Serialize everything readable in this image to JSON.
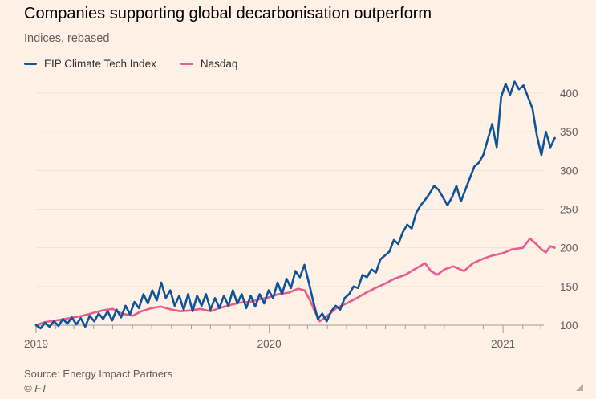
{
  "title": "Companies supporting global decarbonisation outperform",
  "subtitle": "Indices, rebased",
  "source": "Source: Energy Impact Partners",
  "credit": "© FT",
  "chart_data": {
    "type": "line",
    "xlim": [
      "2019-01-01",
      "2021-03-31"
    ],
    "ylim": [
      100,
      420
    ],
    "x_ticks": [
      {
        "date": "2019-01-01",
        "label": "2019"
      },
      {
        "date": "2020-01-01",
        "label": "2020"
      },
      {
        "date": "2021-01-01",
        "label": "2021"
      }
    ],
    "y_ticks": [
      100,
      150,
      200,
      250,
      300,
      350,
      400
    ],
    "y_axis_side": "right",
    "grid": "horizontal",
    "legend_position": "top-left",
    "series": [
      {
        "name": "EIP Climate Tech Index",
        "color": "#0f5499",
        "points": [
          [
            "2019-01-01",
            100
          ],
          [
            "2019-01-08",
            96
          ],
          [
            "2019-01-15",
            103
          ],
          [
            "2019-01-22",
            98
          ],
          [
            "2019-01-29",
            105
          ],
          [
            "2019-02-05",
            99
          ],
          [
            "2019-02-12",
            108
          ],
          [
            "2019-02-19",
            102
          ],
          [
            "2019-02-26",
            110
          ],
          [
            "2019-03-05",
            101
          ],
          [
            "2019-03-12",
            109
          ],
          [
            "2019-03-19",
            98
          ],
          [
            "2019-03-26",
            112
          ],
          [
            "2019-04-02",
            105
          ],
          [
            "2019-04-09",
            115
          ],
          [
            "2019-04-16",
            108
          ],
          [
            "2019-04-23",
            118
          ],
          [
            "2019-04-30",
            106
          ],
          [
            "2019-05-07",
            120
          ],
          [
            "2019-05-14",
            110
          ],
          [
            "2019-05-21",
            125
          ],
          [
            "2019-05-28",
            114
          ],
          [
            "2019-06-04",
            130
          ],
          [
            "2019-06-11",
            122
          ],
          [
            "2019-06-18",
            140
          ],
          [
            "2019-06-25",
            128
          ],
          [
            "2019-07-02",
            145
          ],
          [
            "2019-07-09",
            132
          ],
          [
            "2019-07-16",
            155
          ],
          [
            "2019-07-23",
            135
          ],
          [
            "2019-07-30",
            145
          ],
          [
            "2019-08-06",
            125
          ],
          [
            "2019-08-13",
            138
          ],
          [
            "2019-08-20",
            120
          ],
          [
            "2019-08-27",
            140
          ],
          [
            "2019-09-03",
            118
          ],
          [
            "2019-09-10",
            138
          ],
          [
            "2019-09-17",
            125
          ],
          [
            "2019-09-24",
            140
          ],
          [
            "2019-10-01",
            120
          ],
          [
            "2019-10-08",
            135
          ],
          [
            "2019-10-15",
            122
          ],
          [
            "2019-10-22",
            138
          ],
          [
            "2019-10-29",
            125
          ],
          [
            "2019-11-05",
            145
          ],
          [
            "2019-11-12",
            128
          ],
          [
            "2019-11-19",
            140
          ],
          [
            "2019-11-26",
            122
          ],
          [
            "2019-12-03",
            138
          ],
          [
            "2019-12-10",
            124
          ],
          [
            "2019-12-17",
            140
          ],
          [
            "2019-12-24",
            128
          ],
          [
            "2019-12-31",
            145
          ],
          [
            "2020-01-07",
            135
          ],
          [
            "2020-01-14",
            155
          ],
          [
            "2020-01-21",
            140
          ],
          [
            "2020-01-28",
            160
          ],
          [
            "2020-02-04",
            148
          ],
          [
            "2020-02-11",
            170
          ],
          [
            "2020-02-18",
            162
          ],
          [
            "2020-02-25",
            178
          ],
          [
            "2020-03-03",
            155
          ],
          [
            "2020-03-10",
            130
          ],
          [
            "2020-03-17",
            108
          ],
          [
            "2020-03-24",
            115
          ],
          [
            "2020-03-31",
            105
          ],
          [
            "2020-04-07",
            118
          ],
          [
            "2020-04-14",
            125
          ],
          [
            "2020-04-21",
            120
          ],
          [
            "2020-04-28",
            135
          ],
          [
            "2020-05-05",
            140
          ],
          [
            "2020-05-12",
            150
          ],
          [
            "2020-05-19",
            148
          ],
          [
            "2020-05-26",
            165
          ],
          [
            "2020-06-02",
            162
          ],
          [
            "2020-06-09",
            172
          ],
          [
            "2020-06-16",
            168
          ],
          [
            "2020-06-23",
            185
          ],
          [
            "2020-06-30",
            190
          ],
          [
            "2020-07-07",
            195
          ],
          [
            "2020-07-14",
            210
          ],
          [
            "2020-07-21",
            205
          ],
          [
            "2020-07-28",
            220
          ],
          [
            "2020-08-04",
            230
          ],
          [
            "2020-08-11",
            225
          ],
          [
            "2020-08-18",
            245
          ],
          [
            "2020-08-25",
            255
          ],
          [
            "2020-09-01",
            262
          ],
          [
            "2020-09-08",
            270
          ],
          [
            "2020-09-15",
            280
          ],
          [
            "2020-09-22",
            275
          ],
          [
            "2020-09-29",
            265
          ],
          [
            "2020-10-06",
            255
          ],
          [
            "2020-10-13",
            265
          ],
          [
            "2020-10-20",
            280
          ],
          [
            "2020-10-27",
            260
          ],
          [
            "2020-11-03",
            275
          ],
          [
            "2020-11-10",
            290
          ],
          [
            "2020-11-17",
            305
          ],
          [
            "2020-11-24",
            310
          ],
          [
            "2020-12-01",
            320
          ],
          [
            "2020-12-08",
            340
          ],
          [
            "2020-12-15",
            360
          ],
          [
            "2020-12-22",
            330
          ],
          [
            "2020-12-29",
            395
          ],
          [
            "2021-01-05",
            412
          ],
          [
            "2021-01-12",
            398
          ],
          [
            "2021-01-19",
            415
          ],
          [
            "2021-01-26",
            405
          ],
          [
            "2021-02-02",
            410
          ],
          [
            "2021-02-09",
            395
          ],
          [
            "2021-02-16",
            380
          ],
          [
            "2021-02-23",
            345
          ],
          [
            "2021-03-02",
            320
          ],
          [
            "2021-03-09",
            350
          ],
          [
            "2021-03-16",
            330
          ],
          [
            "2021-03-23",
            342
          ]
        ]
      },
      {
        "name": "Nasdaq",
        "color": "#e95d8c",
        "points": [
          [
            "2019-01-01",
            100
          ],
          [
            "2019-01-15",
            104
          ],
          [
            "2019-02-01",
            106
          ],
          [
            "2019-02-15",
            108
          ],
          [
            "2019-03-01",
            110
          ],
          [
            "2019-03-15",
            112
          ],
          [
            "2019-04-01",
            116
          ],
          [
            "2019-04-15",
            119
          ],
          [
            "2019-05-01",
            121
          ],
          [
            "2019-05-15",
            115
          ],
          [
            "2019-06-01",
            112
          ],
          [
            "2019-06-15",
            118
          ],
          [
            "2019-07-01",
            122
          ],
          [
            "2019-07-15",
            124
          ],
          [
            "2019-08-01",
            120
          ],
          [
            "2019-08-15",
            118
          ],
          [
            "2019-09-01",
            119
          ],
          [
            "2019-09-15",
            121
          ],
          [
            "2019-10-01",
            118
          ],
          [
            "2019-10-15",
            122
          ],
          [
            "2019-11-01",
            126
          ],
          [
            "2019-11-15",
            129
          ],
          [
            "2019-12-01",
            130
          ],
          [
            "2019-12-15",
            133
          ],
          [
            "2020-01-01",
            136
          ],
          [
            "2020-01-15",
            140
          ],
          [
            "2020-02-01",
            142
          ],
          [
            "2020-02-15",
            147
          ],
          [
            "2020-02-25",
            145
          ],
          [
            "2020-03-05",
            132
          ],
          [
            "2020-03-12",
            118
          ],
          [
            "2020-03-20",
            105
          ],
          [
            "2020-04-01",
            112
          ],
          [
            "2020-04-15",
            122
          ],
          [
            "2020-05-01",
            128
          ],
          [
            "2020-05-15",
            134
          ],
          [
            "2020-06-01",
            142
          ],
          [
            "2020-06-15",
            148
          ],
          [
            "2020-07-01",
            154
          ],
          [
            "2020-07-15",
            160
          ],
          [
            "2020-08-01",
            165
          ],
          [
            "2020-08-15",
            172
          ],
          [
            "2020-09-01",
            180
          ],
          [
            "2020-09-10",
            170
          ],
          [
            "2020-09-20",
            165
          ],
          [
            "2020-10-01",
            172
          ],
          [
            "2020-10-15",
            176
          ],
          [
            "2020-11-01",
            170
          ],
          [
            "2020-11-15",
            180
          ],
          [
            "2020-12-01",
            186
          ],
          [
            "2020-12-15",
            190
          ],
          [
            "2021-01-01",
            193
          ],
          [
            "2021-01-15",
            198
          ],
          [
            "2021-02-01",
            200
          ],
          [
            "2021-02-12",
            212
          ],
          [
            "2021-02-22",
            205
          ],
          [
            "2021-03-02",
            198
          ],
          [
            "2021-03-09",
            194
          ],
          [
            "2021-03-16",
            202
          ],
          [
            "2021-03-23",
            200
          ]
        ]
      }
    ]
  }
}
